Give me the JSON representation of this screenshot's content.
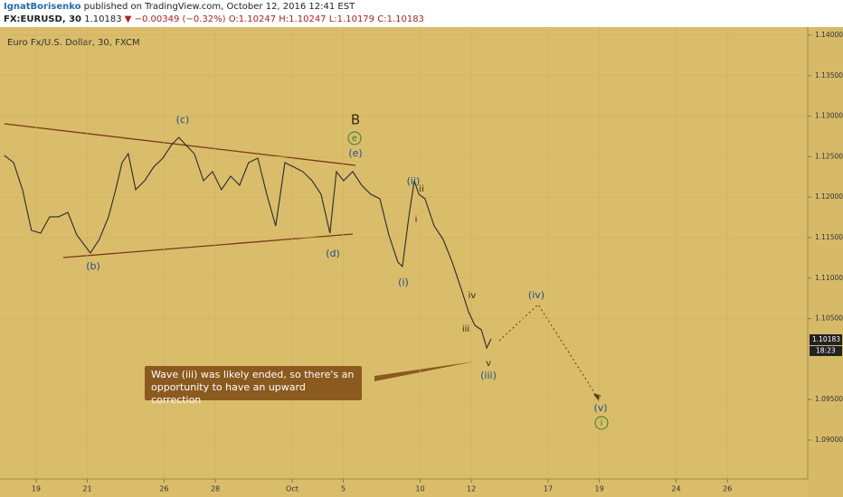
{
  "header": {
    "author": "IgnatBorisenko",
    "published": " published on TradingView.com, October 12, 2016 12:41 EST",
    "symbol": "FX:EURUSD, 30",
    "last": "1.10183",
    "arrow": "▼",
    "change": "−0.00349 (−0.32%)",
    "open": "O:1.10247",
    "high": "H:1.10247",
    "low": "L:1.10179",
    "close": "C:1.10183"
  },
  "chart_data": {
    "type": "line",
    "title": "Euro Fx/U.S. Dollar, 30, FXCM",
    "color": "#2b2b2b",
    "grid": true,
    "countdown": "18:23",
    "x": [
      -1.24,
      -0.88,
      -0.53,
      -0.18,
      0.18,
      0.53,
      0.88,
      1.24,
      1.59,
      2.12,
      2.47,
      2.83,
      3.11,
      3.36,
      3.6,
      3.89,
      4.24,
      4.59,
      4.95,
      5.3,
      5.58,
      5.83,
      6.18,
      6.54,
      6.89,
      7.24,
      7.6,
      7.95,
      8.3,
      8.66,
      9.01,
      9.36,
      9.72,
      10.07,
      10.42,
      10.78,
      11.13,
      11.48,
      11.73,
      12.01,
      12.37,
      12.72,
      13.07,
      13.43,
      13.78,
      14.13,
      14.31,
      14.56,
      14.77,
      14.95,
      15.19,
      15.55,
      15.9,
      16.25,
      16.61,
      16.89,
      17.14,
      17.39,
      17.6,
      17.77
    ],
    "values": [
      1.12516,
      1.12426,
      1.12092,
      1.11589,
      1.11556,
      1.11757,
      1.11757,
      1.11812,
      1.11533,
      1.1131,
      1.11478,
      1.11757,
      1.12092,
      1.12426,
      1.12538,
      1.12092,
      1.12203,
      1.12371,
      1.12482,
      1.1265,
      1.12739,
      1.1265,
      1.12538,
      1.12203,
      1.12315,
      1.12092,
      1.12259,
      1.12147,
      1.12426,
      1.12482,
      1.12036,
      1.11645,
      1.12426,
      1.12371,
      1.12315,
      1.12203,
      1.12036,
      1.11556,
      1.12315,
      1.12203,
      1.12315,
      1.12147,
      1.12036,
      1.1198,
      1.11533,
      1.11199,
      1.11143,
      1.11757,
      1.12203,
      1.12036,
      1.1198,
      1.11645,
      1.11478,
      1.11199,
      1.10864,
      1.10585,
      1.10417,
      1.10362,
      1.10138,
      1.1025
    ],
    "xlim": [
      -1.41,
      30.14
    ],
    "xticks": [
      {
        "value": 0,
        "label": "19"
      },
      {
        "value": 2,
        "label": "21"
      },
      {
        "value": 5,
        "label": "26"
      },
      {
        "value": 7,
        "label": "28"
      },
      {
        "value": 10,
        "label": "Oct"
      },
      {
        "value": 12,
        "label": "5"
      },
      {
        "value": 15,
        "label": "10"
      },
      {
        "value": 17,
        "label": "12"
      },
      {
        "value": 20,
        "label": "17"
      },
      {
        "value": 22,
        "label": "19"
      },
      {
        "value": 25,
        "label": "24"
      },
      {
        "value": 27,
        "label": "26"
      }
    ],
    "ylim": [
      1.0852,
      1.141
    ],
    "yticks": [
      {
        "value": 1.14,
        "label": "1.14000"
      },
      {
        "value": 1.135,
        "label": "1.13500"
      },
      {
        "value": 1.13,
        "label": "1.13000"
      },
      {
        "value": 1.125,
        "label": "1.12500"
      },
      {
        "value": 1.12,
        "label": "1.12000"
      },
      {
        "value": 1.115,
        "label": "1.11500"
      },
      {
        "value": 1.11,
        "label": "1.11000"
      },
      {
        "value": 1.105,
        "label": "1.10500"
      },
      {
        "value": 1.095,
        "label": "1.09500"
      },
      {
        "value": 1.09,
        "label": "1.09000"
      }
    ],
    "annotations": [
      "(c)",
      "(b)",
      "B",
      "e",
      "(e)",
      "(d)",
      "(ii)",
      "ii",
      "i",
      "(i)",
      "iv",
      "iii",
      "v",
      "(iii)",
      "(iv)",
      "(v)",
      "i"
    ],
    "callout": "Wave (iii) was likely ended, so there's an opportunity to have an upward correction"
  }
}
